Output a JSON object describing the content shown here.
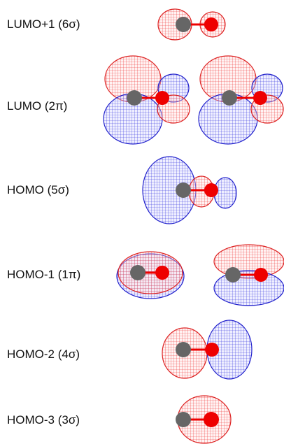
{
  "labels": [
    "LUMO+1 (6σ)",
    "LUMO (2π)",
    "HOMO (5σ)",
    "HOMO-1 (1π)",
    "HOMO-2 (4σ)",
    "HOMO-3 (3σ)"
  ]
}
